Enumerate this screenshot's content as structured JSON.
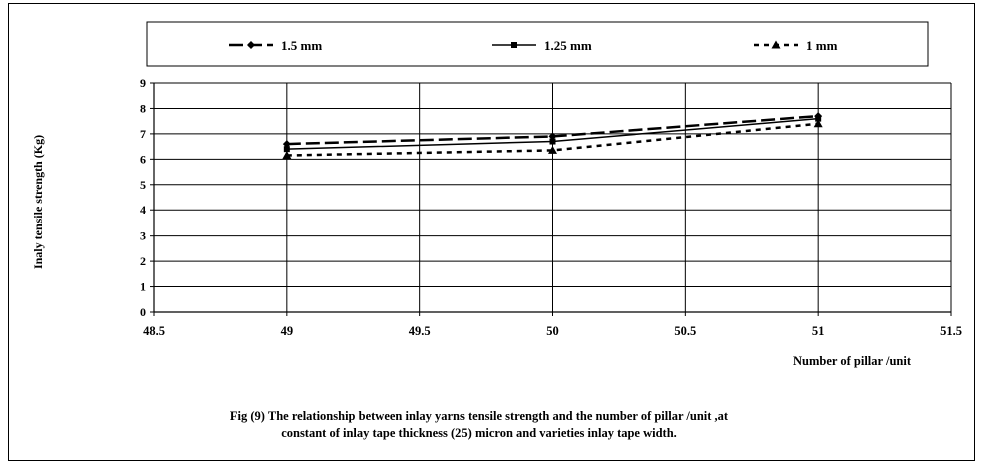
{
  "chart_data": {
    "type": "line",
    "ylabel": "Inaly tensile strength (Kg)",
    "xlabel": "Number of pillar /unit",
    "xlim": [
      48.5,
      51.5
    ],
    "ylim": [
      0,
      9
    ],
    "x_ticks": [
      48.5,
      49,
      49.5,
      50,
      50.5,
      51,
      51.5
    ],
    "y_ticks": [
      0,
      1,
      2,
      3,
      4,
      5,
      6,
      7,
      8,
      9
    ],
    "grid": true,
    "legend_position": "top",
    "series": [
      {
        "name": "1.5 mm",
        "x": [
          49,
          50,
          51
        ],
        "values": [
          6.6,
          6.9,
          7.7
        ],
        "marker": "diamond",
        "dash": "long-dash"
      },
      {
        "name": "1.25 mm",
        "x": [
          49,
          50,
          51
        ],
        "values": [
          6.4,
          6.7,
          7.6
        ],
        "marker": "square",
        "dash": "solid"
      },
      {
        "name": "1 mm",
        "x": [
          49,
          50,
          51
        ],
        "values": [
          6.15,
          6.35,
          7.4
        ],
        "marker": "triangle",
        "dash": "short-dash"
      }
    ]
  },
  "caption": {
    "line1": "Fig (9) The relationship between inlay yarns tensile strength and the number of pillar /unit ,at",
    "line2": "constant of inlay tape thickness (25) micron and varieties inlay tape width."
  }
}
